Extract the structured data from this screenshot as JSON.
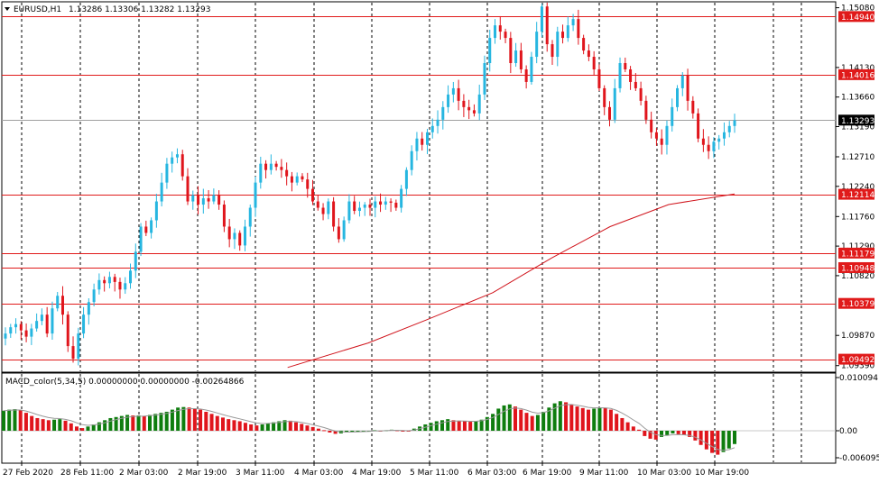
{
  "header": {
    "symbol": "EURUSD,H1",
    "ohlc": "1.13286 1.13306 1.13282 1.13293"
  },
  "macd_label": "MACD_color(5,34,5) 0.00000000 0.00000000 -0.00264866",
  "colors": {
    "bull": "#26b6e0",
    "bear": "#e0151c",
    "ma": "#d0141c",
    "level_line": "#e01a1a",
    "grid": "#000000",
    "hist_up": "#0e7d0e",
    "hist_down": "#e0151c",
    "signal": "#999999"
  },
  "price_axis": {
    "ticks": [
      {
        "value": 1.1508,
        "label": "1.15080"
      },
      {
        "value": 1.1413,
        "label": "1.14130"
      },
      {
        "value": 1.1366,
        "label": "1.13660"
      },
      {
        "value": 1.1319,
        "label": "1.13190"
      },
      {
        "value": 1.1271,
        "label": "1.12710"
      },
      {
        "value": 1.1224,
        "label": "1.12240"
      },
      {
        "value": 1.1176,
        "label": "1.11760"
      },
      {
        "value": 1.1129,
        "label": "1.11290"
      },
      {
        "value": 1.1082,
        "label": "1.10820"
      },
      {
        "value": 1.0987,
        "label": "1.09870"
      },
      {
        "value": 1.0939,
        "label": "1.09390"
      }
    ]
  },
  "levels": [
    {
      "value": 1.1494,
      "label": "1.14940"
    },
    {
      "value": 1.14016,
      "label": "1.14016"
    },
    {
      "value": 1.12114,
      "label": "1.12114"
    },
    {
      "value": 1.11179,
      "label": "1.11179"
    },
    {
      "value": 1.10948,
      "label": "1.10948"
    },
    {
      "value": 1.10379,
      "label": "1.10379"
    },
    {
      "value": 1.09492,
      "label": "1.09492"
    }
  ],
  "current_price": {
    "value": 1.13293,
    "label": "1.13293"
  },
  "macd_axis": {
    "ticks": [
      {
        "value": 0.0100941,
        "label": "0.0100941"
      },
      {
        "value": 0.0,
        "label": "0.00"
      },
      {
        "value": -0.006095,
        "label": "-0.006095"
      }
    ]
  },
  "time_axis": [
    "27 Feb 2020",
    "28 Feb 11:00",
    "2 Mar 03:00",
    "2 Mar 19:00",
    "3 Mar 11:00",
    "4 Mar 03:00",
    "4 Mar 19:00",
    "5 Mar 11:00",
    "6 Mar 03:00",
    "6 Mar 19:00",
    "9 Mar 11:00",
    "10 Mar 03:00",
    "10 Mar 19:00"
  ],
  "chart_data": {
    "type": "candlestick",
    "symbol": "EURUSD",
    "timeframe": "H1",
    "y_range": [
      1.093,
      1.1516
    ],
    "close_path": [
      1.099,
      1.1,
      1.1005,
      1.0995,
      1.0985,
      1.0998,
      1.101,
      1.102,
      1.099,
      1.103,
      1.105,
      1.102,
      1.097,
      1.095,
      1.099,
      1.102,
      1.104,
      1.106,
      1.1075,
      1.107,
      1.108,
      1.1072,
      1.106,
      1.107,
      1.109,
      1.112,
      1.116,
      1.115,
      1.117,
      1.12,
      1.123,
      1.126,
      1.127,
      1.1275,
      1.124,
      1.12,
      1.121,
      1.1195,
      1.1205,
      1.12,
      1.121,
      1.1195,
      1.116,
      1.114,
      1.115,
      1.113,
      1.116,
      1.119,
      1.123,
      1.126,
      1.125,
      1.126,
      1.1255,
      1.125,
      1.124,
      1.123,
      1.124,
      1.1235,
      1.122,
      1.12,
      1.119,
      1.118,
      1.12,
      1.116,
      1.114,
      1.117,
      1.12,
      1.1185,
      1.119,
      1.1195,
      1.119,
      1.12,
      1.1195,
      1.12,
      1.1198,
      1.119,
      1.122,
      1.125,
      1.128,
      1.13,
      1.129,
      1.131,
      1.132,
      1.133,
      1.135,
      1.137,
      1.138,
      1.136,
      1.135,
      1.1345,
      1.134,
      1.137,
      1.142,
      1.146,
      1.148,
      1.147,
      1.146,
      1.142,
      1.144,
      1.141,
      1.139,
      1.143,
      1.147,
      1.151,
      1.145,
      1.143,
      1.147,
      1.146,
      1.148,
      1.149,
      1.146,
      1.144,
      1.143,
      1.141,
      1.138,
      1.135,
      1.133,
      1.138,
      1.142,
      1.141,
      1.139,
      1.138,
      1.136,
      1.133,
      1.131,
      1.13,
      1.129,
      1.132,
      1.135,
      1.138,
      1.14,
      1.136,
      1.134,
      1.13,
      1.129,
      1.128,
      1.1295,
      1.13,
      1.131,
      1.132,
      1.1329
    ],
    "ma_series": [
      {
        "t": 0.39,
        "v": 1.0936
      },
      {
        "t": 0.5,
        "v": 1.0975
      },
      {
        "t": 0.58,
        "v": 1.1012
      },
      {
        "t": 0.67,
        "v": 1.1055
      },
      {
        "t": 0.75,
        "v": 1.111
      },
      {
        "t": 0.83,
        "v": 1.116
      },
      {
        "t": 0.91,
        "v": 1.1195
      },
      {
        "t": 1.0,
        "v": 1.1212
      }
    ],
    "macd_hist": [
      0.0038,
      0.004,
      0.0041,
      0.0039,
      0.0034,
      0.0028,
      0.0024,
      0.0022,
      0.002,
      0.0021,
      0.0022,
      0.0019,
      0.0014,
      0.0008,
      0.0005,
      0.0008,
      0.0012,
      0.0016,
      0.002,
      0.0024,
      0.0026,
      0.0028,
      0.003,
      0.0029,
      0.0029,
      0.0028,
      0.003,
      0.0032,
      0.0034,
      0.0036,
      0.004,
      0.0044,
      0.0045,
      0.0044,
      0.0042,
      0.004,
      0.0036,
      0.0032,
      0.0028,
      0.0025,
      0.0022,
      0.002,
      0.0018,
      0.0015,
      0.0012,
      0.001,
      0.0012,
      0.0014,
      0.0016,
      0.0018,
      0.002,
      0.0019,
      0.0016,
      0.0013,
      0.001,
      0.0007,
      0.0004,
      0.0001,
      -0.0004,
      -0.0007,
      -0.0006,
      -0.0004,
      -0.0003,
      -0.0002,
      -0.0001,
      0.0,
      0.0001,
      0.0,
      0.0001,
      0.0002,
      0.0001,
      0.0,
      -0.0001,
      0.0004,
      0.0008,
      0.0012,
      0.0015,
      0.0018,
      0.002,
      0.0022,
      0.002,
      0.0019,
      0.0018,
      0.0017,
      0.0018,
      0.0021,
      0.0026,
      0.0032,
      0.0042,
      0.0048,
      0.005,
      0.0046,
      0.004,
      0.0034,
      0.0028,
      0.003,
      0.0036,
      0.0044,
      0.0052,
      0.0056,
      0.0054,
      0.005,
      0.0046,
      0.0043,
      0.004,
      0.0042,
      0.0044,
      0.0043,
      0.004,
      0.0032,
      0.0024,
      0.0016,
      0.0008,
      0.0002,
      -0.0012,
      -0.0018,
      -0.002,
      -0.0014,
      -0.001,
      -0.0006,
      -0.0008,
      -0.001,
      -0.0014,
      -0.0022,
      -0.0032,
      -0.0042,
      -0.005,
      -0.0054,
      -0.0048,
      -0.004,
      -0.003
    ]
  }
}
